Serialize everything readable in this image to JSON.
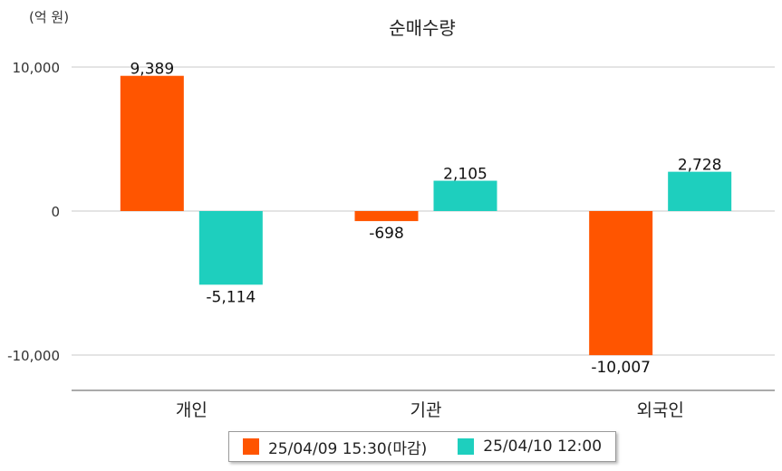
{
  "chart_data": {
    "type": "bar",
    "title": "순매수량",
    "unit_label": "(억 원)",
    "categories": [
      "개인",
      "기관",
      "외국인"
    ],
    "series": [
      {
        "name": "25/04/09 15:30(마감)",
        "color": "#ff5500",
        "values": [
          9389,
          -698,
          -10007
        ],
        "labels": [
          "9,389",
          "-698",
          "-10,007"
        ]
      },
      {
        "name": "25/04/10 12:00",
        "color": "#1ecfbe",
        "values": [
          -5114,
          2105,
          2728
        ],
        "labels": [
          "-5,114",
          "2,105",
          "2,728"
        ]
      }
    ],
    "y_ticks": [
      10000,
      0,
      -10000
    ],
    "y_tick_labels": [
      "10,000",
      "0",
      "-10,000"
    ],
    "ylim": [
      -12500,
      10000
    ],
    "grid": true,
    "legend_position": "bottom"
  }
}
